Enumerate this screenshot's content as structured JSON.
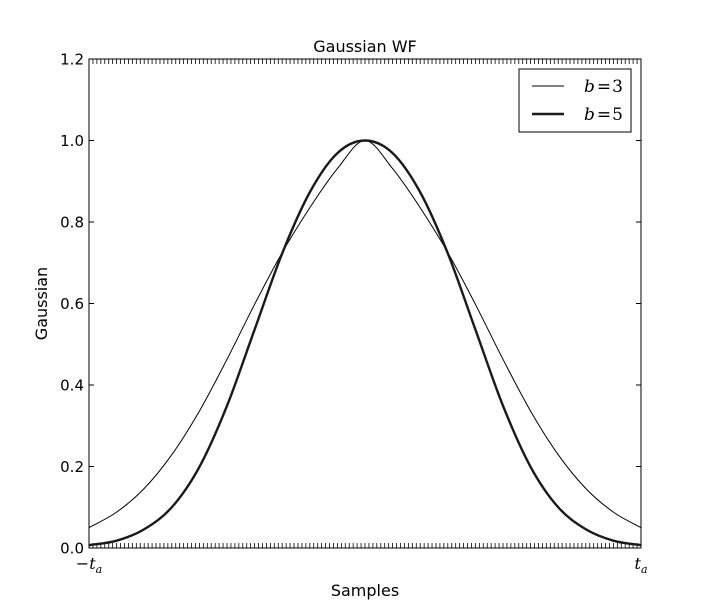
{
  "chart_data": {
    "type": "line",
    "title": "Gaussian WF",
    "xlabel": "Samples",
    "ylabel": "Gaussian",
    "x_ticks": [
      {
        "value": -1,
        "sign": "−",
        "label": "t",
        "sub": "a"
      },
      {
        "value": 1,
        "sign": "",
        "label": "t",
        "sub": "a"
      }
    ],
    "xlim": [
      -1,
      1
    ],
    "ylim": [
      0,
      1.2
    ],
    "y_ticks": [
      0.0,
      0.2,
      0.4,
      0.6,
      0.8,
      1.0,
      1.2
    ],
    "y_tick_labels": [
      "0.0",
      "0.2",
      "0.4",
      "0.6",
      "0.8",
      "1.0",
      "1.2"
    ],
    "grid": false,
    "legend_position": "top-right",
    "x": [
      -1.0,
      -0.9,
      -0.8,
      -0.7,
      -0.6,
      -0.5,
      -0.4,
      -0.3,
      -0.2,
      -0.1,
      0.0,
      0.1,
      0.2,
      0.3,
      0.4,
      0.5,
      0.6,
      0.7,
      0.8,
      0.9,
      1.0
    ],
    "series": [
      {
        "name": "b = 3",
        "name_var": "b",
        "name_eq": "=",
        "name_num": "3",
        "style": "thin",
        "color": "#000000",
        "values": [
          0.05,
          0.088,
          0.146,
          0.229,
          0.336,
          0.463,
          0.598,
          0.725,
          0.835,
          0.931,
          1.0,
          0.931,
          0.835,
          0.725,
          0.598,
          0.463,
          0.336,
          0.229,
          0.146,
          0.088,
          0.05
        ]
      },
      {
        "name": "b = 5",
        "name_var": "b",
        "name_eq": "=",
        "name_num": "5",
        "style": "thick",
        "color": "#1a1a1a",
        "values": [
          0.007,
          0.018,
          0.046,
          0.1,
          0.199,
          0.349,
          0.536,
          0.723,
          0.873,
          0.969,
          1.0,
          0.969,
          0.873,
          0.723,
          0.536,
          0.349,
          0.199,
          0.1,
          0.046,
          0.018,
          0.007
        ]
      }
    ]
  }
}
